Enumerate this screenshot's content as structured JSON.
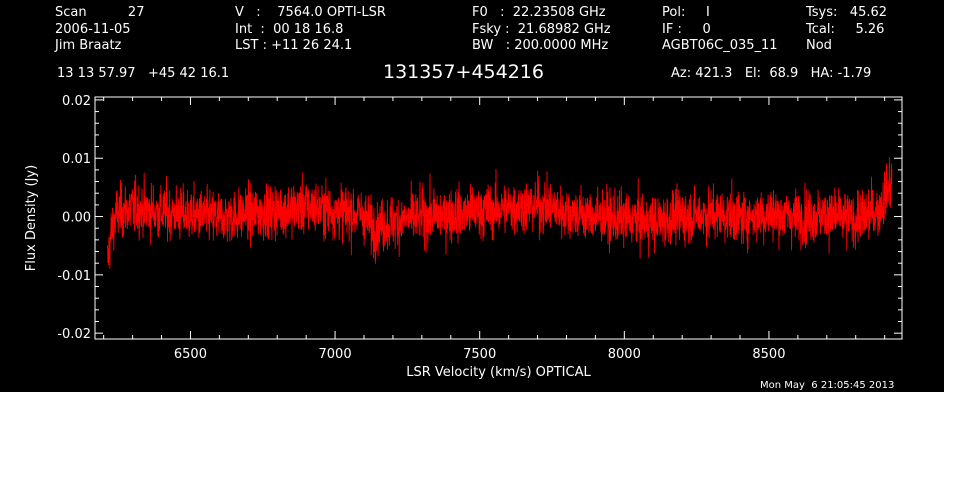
{
  "header": {
    "scan": "Scan          27",
    "date": "2006-11-05",
    "observer": "Jim Braatz",
    "v": "V   :    7564.0 OPTI-LSR",
    "int": "Int  :  00 18 16.8",
    "lst": "LST : +11 26 24.1",
    "f0": "F0   :  22.23508 GHz",
    "fsky": "Fsky :  21.68982 GHz",
    "bw": "BW   : 200.0000 MHz",
    "pol": "Pol:     I",
    "if": "IF :     0",
    "project": "AGBT06C_035_11",
    "tsys": "Tsys:   45.62",
    "tcal": "Tcal:     5.26",
    "proc": "Nod",
    "coords": "13 13 57.97   +45 42 16.1",
    "source": "131357+454216",
    "azelha": "Az: 421.3   El:  68.9   HA: -1.79"
  },
  "footer": {
    "timestamp": "Mon May  6 21:05:45 2013"
  },
  "colors": {
    "background": "#000000",
    "foreground": "#ffffff",
    "trace": "#ff0000"
  },
  "chart_data": {
    "type": "line",
    "xlabel": "LSR Velocity (km/s) OPTICAL",
    "ylabel": "Flux Density (Jy)",
    "xlim": [
      6170,
      8960
    ],
    "ylim": [
      -0.021,
      0.0205
    ],
    "xticks": [
      6500,
      7000,
      7500,
      8000,
      8500
    ],
    "xtick_labels": [
      "6500",
      "7000",
      "7500",
      "8000",
      "8500"
    ],
    "yticks": [
      -0.02,
      -0.01,
      0.0,
      0.01,
      0.02
    ],
    "ytick_labels": [
      "-0.02",
      "-0.01",
      "0.00",
      "0.01",
      "0.02"
    ],
    "grid": false,
    "series": [
      {
        "x_range": [
          6213,
          8925
        ],
        "noise_sigma": 0.0045,
        "baseline": [
          [
            6213,
            -0.008
          ],
          [
            6225,
            -0.003
          ],
          [
            6245,
            0.0005
          ],
          [
            6300,
            0.0015
          ],
          [
            6400,
            0.0007
          ],
          [
            6500,
            0.0003
          ],
          [
            6600,
            -0.0002
          ],
          [
            6700,
            0.0005
          ],
          [
            6800,
            0.001
          ],
          [
            6900,
            0.0018
          ],
          [
            7000,
            0.001
          ],
          [
            7100,
            0.0003
          ],
          [
            7130,
            -0.002
          ],
          [
            7200,
            -0.001
          ],
          [
            7300,
            0.0
          ],
          [
            7400,
            0.0005
          ],
          [
            7500,
            0.0008
          ],
          [
            7600,
            0.0015
          ],
          [
            7700,
            0.002
          ],
          [
            7800,
            0.0008
          ],
          [
            7900,
            0.0
          ],
          [
            8000,
            -0.0005
          ],
          [
            8100,
            -0.001
          ],
          [
            8200,
            0.0
          ],
          [
            8300,
            0.0005
          ],
          [
            8400,
            -0.0002
          ],
          [
            8500,
            0.0005
          ],
          [
            8600,
            0.0
          ],
          [
            8700,
            0.0002
          ],
          [
            8800,
            -0.0005
          ],
          [
            8880,
            0.001
          ],
          [
            8925,
            0.006
          ]
        ]
      }
    ]
  }
}
